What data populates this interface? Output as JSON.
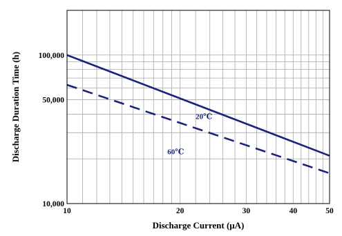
{
  "chart_data": {
    "type": "line",
    "xlabel": "Discharge Current (μA)",
    "ylabel": "Discharge Duration Time (h)",
    "xscale": "log",
    "yscale": "log",
    "xlim": [
      10,
      50
    ],
    "ylim": [
      10000,
      200000
    ],
    "x_ticks": [
      10,
      20,
      30,
      40,
      50
    ],
    "x_tick_labels": [
      "10",
      "20",
      "30",
      "40",
      "50"
    ],
    "y_ticks": [
      10000,
      50000,
      100000
    ],
    "y_tick_labels": [
      "10,000",
      "50,000",
      "100,000"
    ],
    "grid": true,
    "series": [
      {
        "name": "20℃",
        "style": "solid",
        "x": [
          10,
          50
        ],
        "y": [
          100000,
          21000
        ]
      },
      {
        "name": "60℃",
        "style": "dashed",
        "x": [
          10,
          50
        ],
        "y": [
          63000,
          16000
        ]
      }
    ],
    "colors": {
      "series": "#1a237e",
      "grid": "#a8a8a8",
      "frame": "#000000"
    }
  }
}
